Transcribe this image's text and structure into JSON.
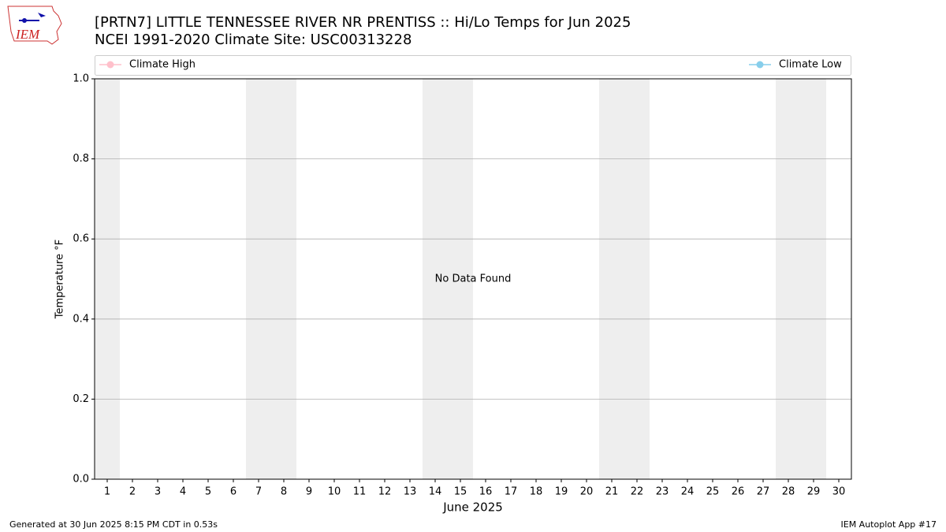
{
  "logo_text": "IEM",
  "footer": {
    "left": "Generated at 30 Jun 2025 8:15 PM CDT in 0.53s",
    "right": "IEM Autoplot App #17"
  },
  "chart_data": {
    "type": "line",
    "title": "[PRTN7] LITTLE TENNESSEE RIVER NR PRENTISS :: Hi/Lo Temps for Jun 2025",
    "subtitle": "NCEI 1991-2020 Climate Site: USC00313228",
    "x_label": "June 2025",
    "y_label": "Temperature °F",
    "annotation": {
      "text": "No Data Found",
      "x": 15.5,
      "y": 0.5
    },
    "x": [
      1,
      2,
      3,
      4,
      5,
      6,
      7,
      8,
      9,
      10,
      11,
      12,
      13,
      14,
      15,
      16,
      17,
      18,
      19,
      20,
      21,
      22,
      23,
      24,
      25,
      26,
      27,
      28,
      29,
      30
    ],
    "series": [
      {
        "name": "Climate High",
        "color": "pink",
        "values": [
          null,
          null,
          null,
          null,
          null,
          null,
          null,
          null,
          null,
          null,
          null,
          null,
          null,
          null,
          null,
          null,
          null,
          null,
          null,
          null,
          null,
          null,
          null,
          null,
          null,
          null,
          null,
          null,
          null,
          null
        ]
      },
      {
        "name": "Climate Low",
        "color": "skyblue",
        "values": [
          null,
          null,
          null,
          null,
          null,
          null,
          null,
          null,
          null,
          null,
          null,
          null,
          null,
          null,
          null,
          null,
          null,
          null,
          null,
          null,
          null,
          null,
          null,
          null,
          null,
          null,
          null,
          null,
          null,
          null
        ]
      }
    ],
    "shaded_x": [
      1,
      7,
      8,
      14,
      15,
      21,
      22,
      28,
      29
    ],
    "shade_color": "#eeeeee",
    "xlim": [
      0.5,
      30.5
    ],
    "xticks": [
      1,
      2,
      3,
      4,
      5,
      6,
      7,
      8,
      9,
      10,
      11,
      12,
      13,
      14,
      15,
      16,
      17,
      18,
      19,
      20,
      21,
      22,
      23,
      24,
      25,
      26,
      27,
      28,
      29,
      30
    ],
    "ylim": [
      0,
      1
    ],
    "yticks": [
      {
        "value": 0,
        "label": "0.0"
      },
      0.2,
      0.4,
      0.6,
      0.8,
      {
        "value": 1,
        "label": "1.0"
      }
    ],
    "grid": true
  }
}
